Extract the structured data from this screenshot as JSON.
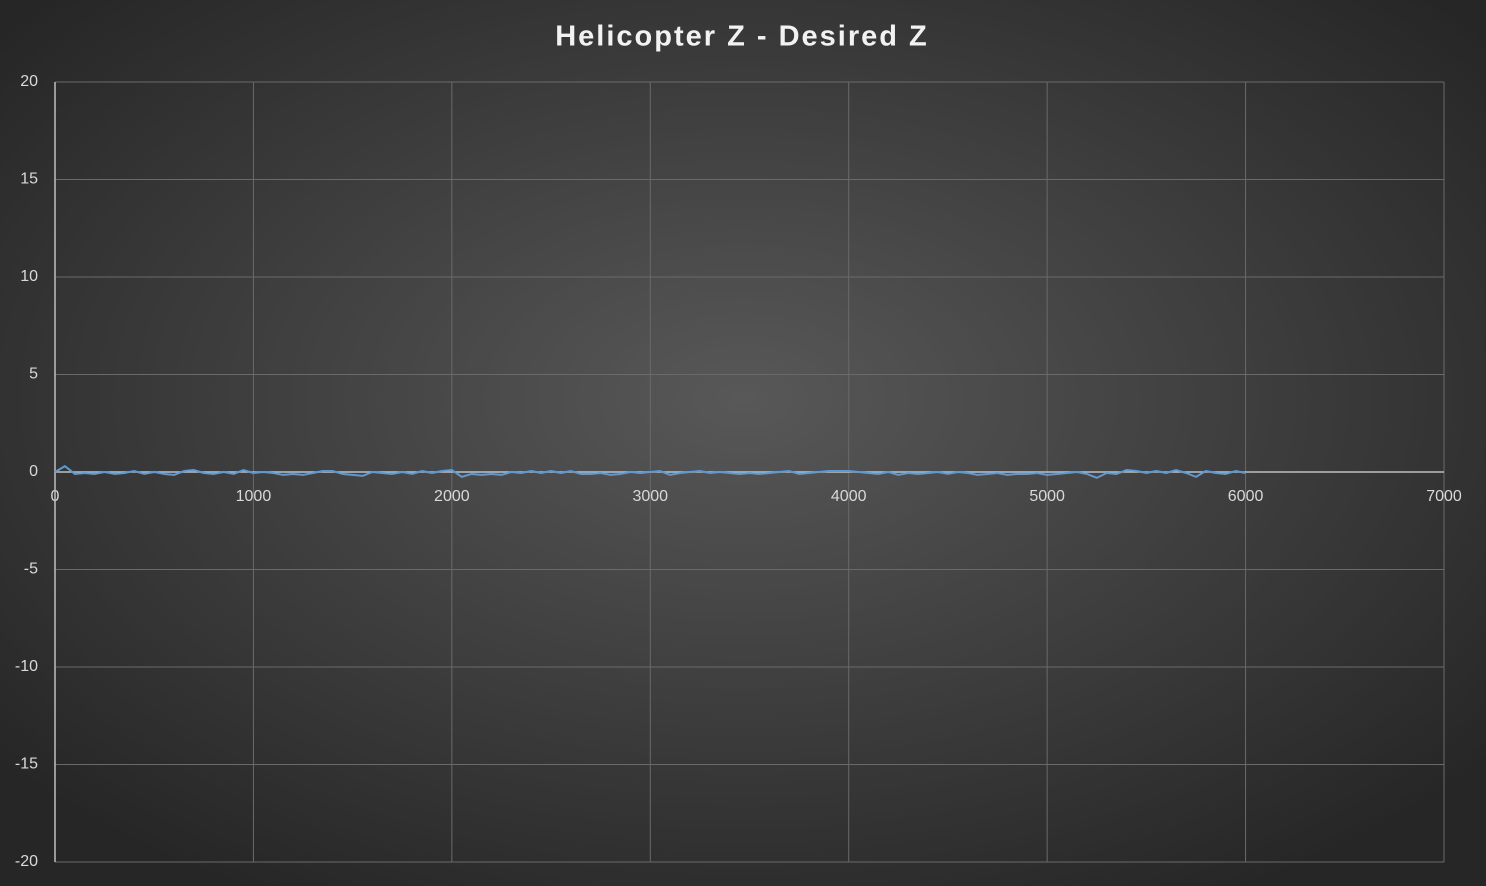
{
  "chart_data": {
    "type": "line",
    "title": "Helicopter Z - Desired Z",
    "x": [
      0,
      50,
      100,
      150,
      200,
      250,
      300,
      350,
      400,
      450,
      500,
      550,
      600,
      650,
      700,
      750,
      800,
      850,
      900,
      950,
      1000,
      1050,
      1100,
      1150,
      1200,
      1250,
      1300,
      1350,
      1400,
      1450,
      1500,
      1550,
      1600,
      1650,
      1700,
      1750,
      1800,
      1850,
      1900,
      1950,
      2000,
      2050,
      2100,
      2150,
      2200,
      2250,
      2300,
      2350,
      2400,
      2450,
      2500,
      2550,
      2600,
      2650,
      2700,
      2750,
      2800,
      2850,
      2900,
      2950,
      3000,
      3050,
      3100,
      3150,
      3200,
      3250,
      3300,
      3350,
      3400,
      3450,
      3500,
      3550,
      3600,
      3650,
      3700,
      3750,
      3800,
      3850,
      3900,
      3950,
      4000,
      4050,
      4100,
      4150,
      4200,
      4250,
      4300,
      4350,
      4400,
      4450,
      4500,
      4550,
      4600,
      4650,
      4700,
      4750,
      4800,
      4850,
      4900,
      4950,
      5000,
      5050,
      5100,
      5150,
      5200,
      5250,
      5300,
      5350,
      5400,
      5450,
      5500,
      5550,
      5600,
      5650,
      5700,
      5750,
      5800,
      5850,
      5900,
      5950,
      6000
    ],
    "series": [
      {
        "color": "#5b9bd5",
        "values": [
          0.0,
          0.3,
          -0.1,
          -0.05,
          -0.1,
          0.0,
          -0.1,
          -0.05,
          0.05,
          -0.1,
          0.0,
          -0.1,
          -0.15,
          0.05,
          0.1,
          -0.05,
          -0.1,
          0.0,
          -0.1,
          0.1,
          -0.05,
          0.0,
          -0.05,
          -0.15,
          -0.1,
          -0.15,
          -0.05,
          0.05,
          0.05,
          -0.1,
          -0.15,
          -0.2,
          0.0,
          -0.05,
          -0.1,
          0.0,
          -0.1,
          0.05,
          -0.05,
          0.05,
          0.1,
          -0.25,
          -0.1,
          -0.15,
          -0.1,
          -0.15,
          0.0,
          -0.05,
          0.05,
          -0.05,
          0.05,
          -0.05,
          0.05,
          -0.1,
          -0.1,
          -0.05,
          -0.15,
          -0.1,
          0.0,
          -0.05,
          0.0,
          0.05,
          -0.15,
          -0.05,
          0.0,
          0.05,
          -0.05,
          0.0,
          -0.05,
          -0.1,
          -0.05,
          -0.1,
          -0.05,
          0.0,
          0.05,
          -0.1,
          -0.05,
          0.0,
          0.05,
          0.05,
          0.05,
          0.0,
          -0.05,
          -0.1,
          0.0,
          -0.15,
          -0.05,
          -0.1,
          -0.05,
          0.0,
          -0.1,
          0.0,
          -0.05,
          -0.15,
          -0.1,
          -0.05,
          -0.15,
          -0.1,
          -0.1,
          -0.05,
          -0.15,
          -0.1,
          -0.05,
          0.0,
          -0.1,
          -0.3,
          -0.05,
          -0.1,
          0.1,
          0.05,
          -0.05,
          0.05,
          -0.05,
          0.1,
          -0.05,
          -0.25,
          0.05,
          -0.05,
          -0.1,
          0.05,
          -0.05
        ]
      }
    ],
    "xlim": [
      0,
      7000
    ],
    "xticks": [
      0,
      1000,
      2000,
      3000,
      4000,
      5000,
      6000,
      7000
    ],
    "ylim": [
      -20,
      20
    ],
    "yticks": [
      -20,
      -15,
      -10,
      -5,
      0,
      5,
      10,
      15,
      20
    ],
    "grid": true
  }
}
